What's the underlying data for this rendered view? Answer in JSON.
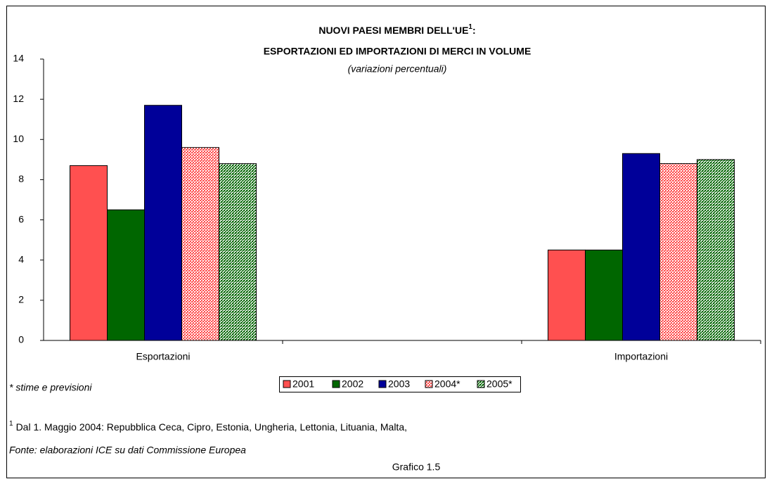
{
  "chart_data": {
    "type": "bar",
    "title": {
      "text": "NUOVI PAESI MEMBRI DELL'UE",
      "sup": "1",
      "end": ":"
    },
    "title_line2": "ESPORTAZIONI ED IMPORTAZIONI DI MERCI IN VOLUME",
    "subtitle": "(variazioni percentuali)",
    "categories": [
      "Esportazioni",
      null,
      "Importazioni"
    ],
    "series": [
      {
        "name": "2001",
        "color": "#ff5050",
        "values": [
          8.7,
          null,
          4.5
        ]
      },
      {
        "name": "2002",
        "color": "#006600",
        "values": [
          6.5,
          null,
          4.5
        ]
      },
      {
        "name": "2003",
        "color": "#000099",
        "values": [
          11.7,
          null,
          9.3
        ]
      },
      {
        "name": "2004*",
        "color": "#ff5050",
        "pattern": "dots",
        "values": [
          9.6,
          null,
          8.8
        ]
      },
      {
        "name": "2005*",
        "color": "#006600",
        "pattern": "checker",
        "values": [
          8.8,
          null,
          9.0
        ]
      }
    ],
    "ylim": [
      0,
      14
    ],
    "yticks": [
      0,
      2,
      4,
      6,
      8,
      10,
      12,
      14
    ],
    "grid": false,
    "legend": "bottom",
    "notes": {
      "estimate": "* stime e previsioni",
      "footnote_mark": "1",
      "footnote": "Dal 1. Maggio 2004: Repubblica Ceca, Cipro, Estonia, Ungheria, Lettonia, Lituania, Malta,",
      "source": "Fonte: elaborazioni ICE su dati Commissione Europea",
      "figure": "Grafico 1.5"
    }
  }
}
